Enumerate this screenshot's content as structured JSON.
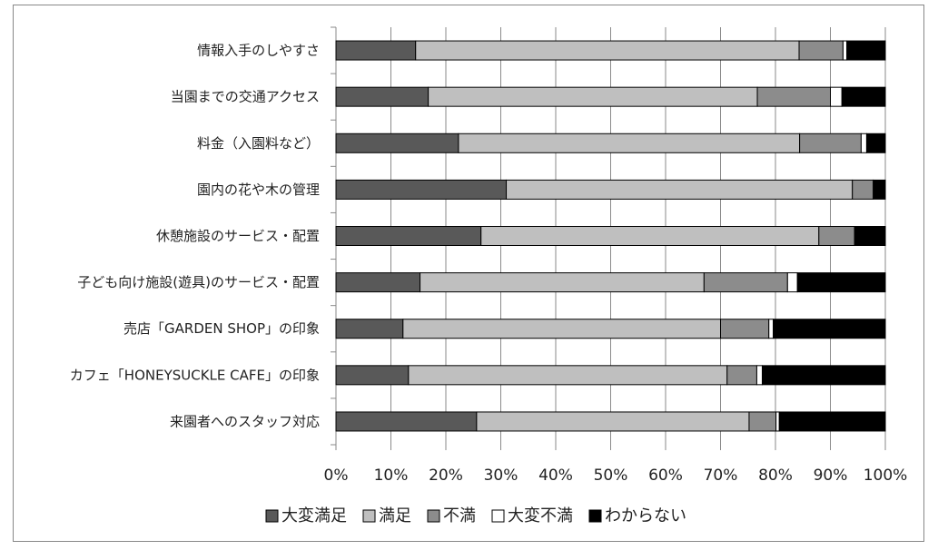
{
  "chart_data": {
    "type": "bar",
    "orientation": "horizontal",
    "stacked": true,
    "percent_stacked": true,
    "categories": [
      "情報入手のしやすさ",
      "当園までの交通アクセス",
      "料金（入園料など）",
      "園内の花や木の管理",
      "休憩施設のサービス・配置",
      "子ども向け施設(遊具)のサービス・配置",
      "売店「GARDEN SHOP」の印象",
      "カフェ「HONEYSUCKLE CAFE」の印象",
      "来園者へのスタッフ対応"
    ],
    "series": [
      {
        "name": "大変満足",
        "color": "#595959",
        "values": [
          14.5,
          16.8,
          22.3,
          31.0,
          26.4,
          15.3,
          12.2,
          13.2,
          25.6
        ]
      },
      {
        "name": "満足",
        "color": "#bfbfbf",
        "values": [
          69.8,
          59.9,
          62.1,
          63.0,
          61.5,
          51.7,
          57.8,
          58.0,
          49.6
        ]
      },
      {
        "name": "不満",
        "color": "#8c8c8c",
        "values": [
          8.0,
          13.3,
          11.2,
          3.8,
          6.5,
          15.2,
          8.8,
          5.4,
          4.9
        ]
      },
      {
        "name": "大変不満",
        "color": "#ffffff",
        "values": [
          0.7,
          2.1,
          1.0,
          0.0,
          0.0,
          1.8,
          0.8,
          1.0,
          0.6
        ]
      },
      {
        "name": "わからない",
        "color": "#000000",
        "values": [
          7.0,
          7.9,
          3.4,
          2.2,
          5.6,
          16.0,
          20.4,
          22.4,
          19.3
        ]
      }
    ],
    "x_ticks": [
      "0%",
      "10%",
      "20%",
      "30%",
      "40%",
      "50%",
      "60%",
      "70%",
      "80%",
      "90%",
      "100%"
    ],
    "xlim": [
      0,
      100
    ],
    "title": "",
    "xlabel": "",
    "ylabel": "",
    "grid": "vertical",
    "legend_position": "bottom"
  }
}
